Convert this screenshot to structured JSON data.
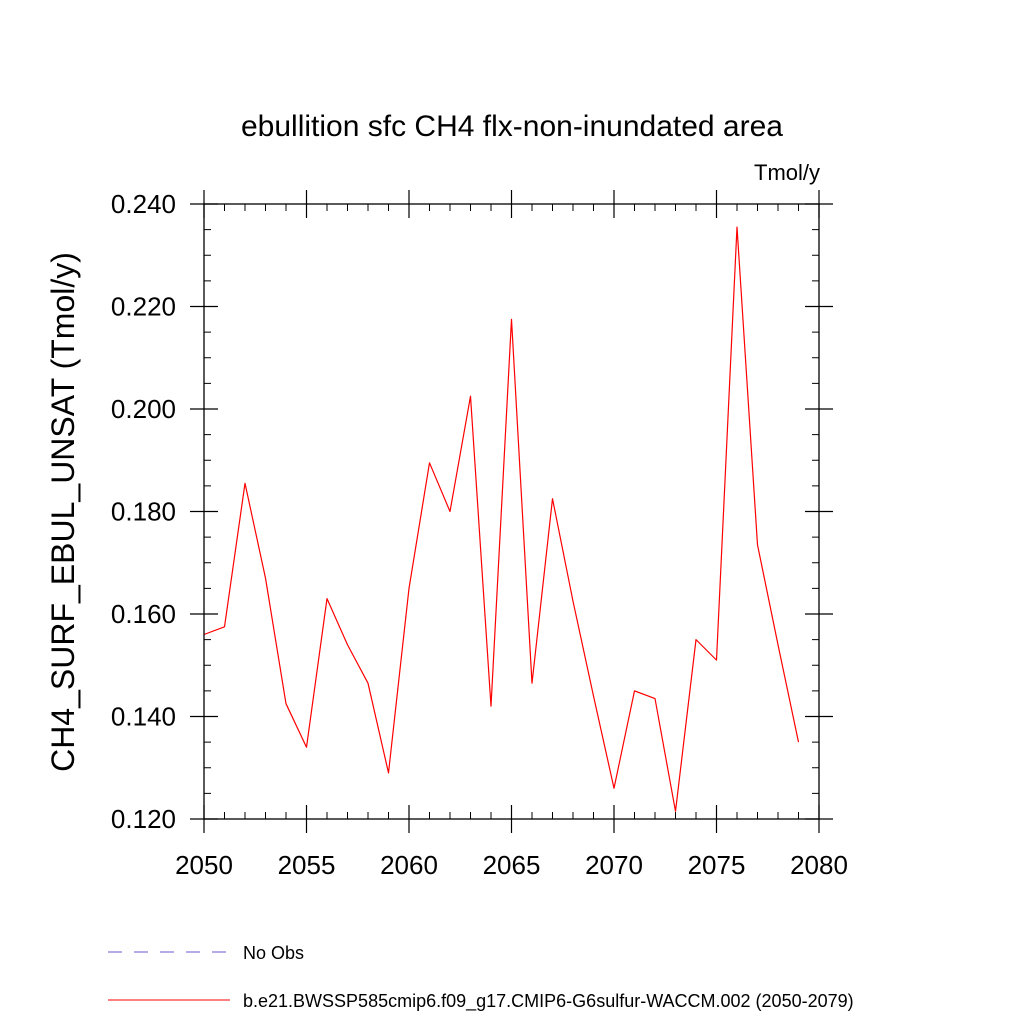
{
  "chart_data": {
    "type": "line",
    "title": "ebullition sfc CH4 flx-non-inundated area",
    "units": "Tmol/y",
    "ylabel": "CH4_SURF_EBUL_UNSAT  (Tmol/y)",
    "xlabel": "",
    "xlim": [
      2050,
      2080
    ],
    "ylim": [
      0.12,
      0.24
    ],
    "x_ticks": [
      2050,
      2055,
      2060,
      2065,
      2070,
      2075,
      2080
    ],
    "x_tick_labels": [
      "2050",
      "2055",
      "2060",
      "2065",
      "2070",
      "2075",
      "2080"
    ],
    "y_ticks": [
      0.12,
      0.14,
      0.16,
      0.18,
      0.2,
      0.22,
      0.24
    ],
    "y_tick_labels": [
      "0.120",
      "0.140",
      "0.160",
      "0.180",
      "0.200",
      "0.220",
      "0.240"
    ],
    "legend_placement": "bottom",
    "series": [
      {
        "name": "b.e21.BWSSP585cmip6.f09_g17.CMIP6-G6sulfur-WACCM.002 (2050-2079)",
        "color": "#ff0000",
        "style": "solid",
        "x": [
          2050,
          2051,
          2052,
          2053,
          2054,
          2055,
          2056,
          2057,
          2058,
          2059,
          2060,
          2061,
          2062,
          2063,
          2064,
          2065,
          2066,
          2067,
          2068,
          2069,
          2070,
          2071,
          2072,
          2073,
          2074,
          2075,
          2076,
          2077,
          2078,
          2079
        ],
        "y": [
          0.156,
          0.1575,
          0.1855,
          0.167,
          0.1425,
          0.134,
          0.163,
          0.154,
          0.1465,
          0.129,
          0.165,
          0.1895,
          0.18,
          0.2025,
          0.142,
          0.2175,
          0.1465,
          0.1825,
          0.1625,
          0.144,
          0.126,
          0.145,
          0.1435,
          0.1215,
          0.155,
          0.151,
          0.2355,
          0.1735,
          0.154,
          0.135
        ]
      }
    ],
    "legend": [
      {
        "label": "No Obs",
        "color": "#6a5acd",
        "style": "dashed"
      },
      {
        "label": "b.e21.BWSSP585cmip6.f09_g17.CMIP6-G6sulfur-WACCM.002 (2050-2079)",
        "color": "#ff0000",
        "style": "solid"
      }
    ]
  }
}
